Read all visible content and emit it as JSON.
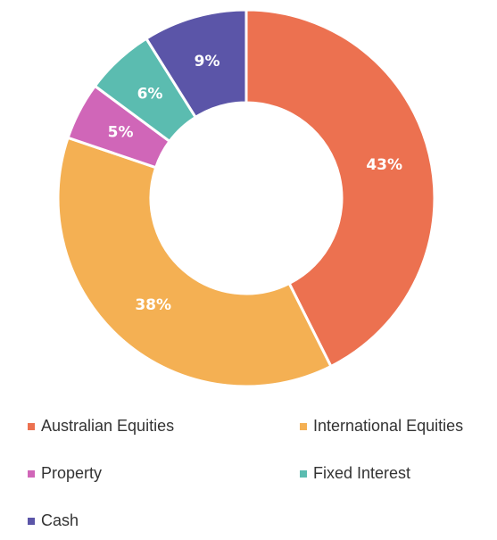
{
  "chart_data": {
    "type": "donut",
    "categories": [
      "Australian Equities",
      "International Equities",
      "Property",
      "Fixed Interest",
      "Cash"
    ],
    "values": [
      43,
      38,
      5,
      6,
      9
    ],
    "value_labels": [
      "43%",
      "38%",
      "5%",
      "6%",
      "9%"
    ],
    "colors": [
      "#ec7150",
      "#f4b053",
      "#d066b8",
      "#5bbcb0",
      "#5b55a8"
    ],
    "legend": "bottom"
  }
}
